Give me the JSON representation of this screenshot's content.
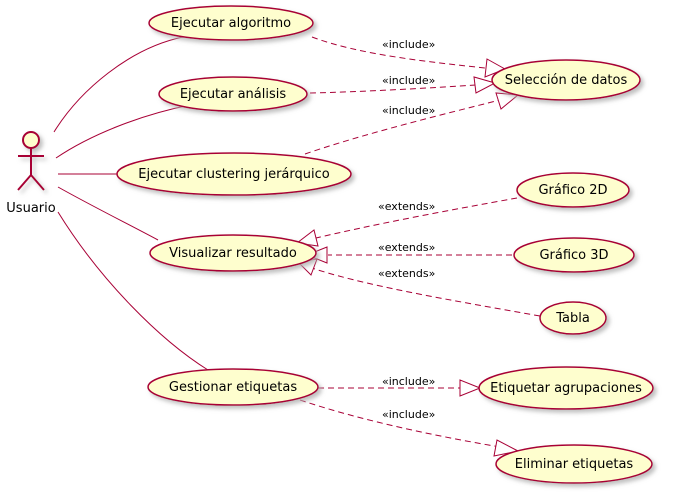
{
  "colors": {
    "line": "#A80036",
    "usecase_fill": "#FEFECE",
    "shadow": "#D8D8D8",
    "text": "#000000"
  },
  "actor": {
    "label": "Usuario"
  },
  "use_cases": {
    "ejecutar_algoritmo": "Ejecutar algoritmo",
    "ejecutar_analisis": "Ejecutar análisis",
    "ejecutar_clustering": "Ejecutar clustering jerárquico",
    "visualizar_resultado": "Visualizar resultado",
    "gestionar_etiquetas": "Gestionar etiquetas",
    "seleccion_datos": "Selección de datos",
    "grafico_2d": "Gráfico 2D",
    "grafico_3d": "Gráfico 3D",
    "tabla": "Tabla",
    "etiquetar_agrupaciones": "Etiquetar agrupaciones",
    "eliminar_etiquetas": "Eliminar etiquetas"
  },
  "relations": {
    "algoritmo_seleccion": "«include»",
    "analisis_seleccion": "«include»",
    "clustering_seleccion": "«include»",
    "grafico2d_visualizar": "«extends»",
    "grafico3d_visualizar": "«extends»",
    "tabla_visualizar": "«extends»",
    "gestionar_etiquetar": "«include»",
    "gestionar_eliminar": "«include»"
  }
}
